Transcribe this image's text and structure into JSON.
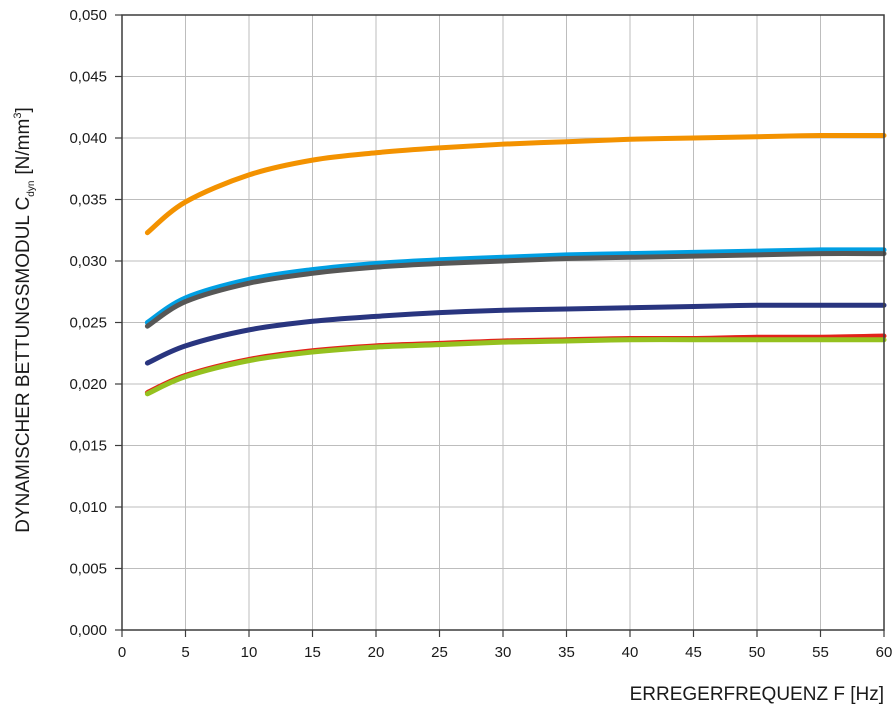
{
  "chart_data": {
    "type": "line",
    "xlabel": "ERREGERFREQUENZ F [Hz]",
    "ylabel": {
      "main": "DYNAMISCHER BETTUNGSMODUL C",
      "subscript": "dyn",
      "unit_prefix": "[N/mm",
      "unit_superscript": "3",
      "unit_suffix": "]"
    },
    "xlim": [
      0,
      60
    ],
    "ylim": [
      0,
      0.05
    ],
    "x_ticks": [
      "0",
      "5",
      "10",
      "15",
      "20",
      "25",
      "30",
      "35",
      "40",
      "45",
      "50",
      "55",
      "60"
    ],
    "y_ticks": [
      "0,000",
      "0,005",
      "0,010",
      "0,015",
      "0,020",
      "0,025",
      "0,030",
      "0,035",
      "0,040",
      "0,045",
      "0,050"
    ],
    "grid": true,
    "x": [
      2,
      5,
      10,
      15,
      20,
      25,
      30,
      35,
      40,
      45,
      50,
      55,
      60
    ],
    "series": [
      {
        "color": "#f39200",
        "values": [
          0.0323,
          0.0348,
          0.037,
          0.0382,
          0.0388,
          0.0392,
          0.0395,
          0.0397,
          0.0399,
          0.04,
          0.0401,
          0.0402,
          0.0402
        ]
      },
      {
        "color": "#009fe3",
        "values": [
          0.025,
          0.027,
          0.0285,
          0.0293,
          0.0298,
          0.0301,
          0.0303,
          0.0305,
          0.0306,
          0.0307,
          0.0308,
          0.0309,
          0.0309
        ]
      },
      {
        "color": "#575756",
        "values": [
          0.0247,
          0.0267,
          0.0282,
          0.029,
          0.0295,
          0.0298,
          0.03,
          0.0302,
          0.0303,
          0.0304,
          0.0305,
          0.0306,
          0.0306
        ]
      },
      {
        "color": "#29357f",
        "values": [
          0.0217,
          0.0231,
          0.0244,
          0.0251,
          0.0255,
          0.0258,
          0.026,
          0.0261,
          0.0262,
          0.0263,
          0.0264,
          0.0264,
          0.0264
        ]
      },
      {
        "color": "#e2231a",
        "values": [
          0.0193,
          0.0207,
          0.022,
          0.0227,
          0.0231,
          0.0233,
          0.0235,
          0.0236,
          0.0237,
          0.0237,
          0.0238,
          0.0238,
          0.0239
        ]
      },
      {
        "color": "#95c11f",
        "values": [
          0.0192,
          0.0206,
          0.0219,
          0.0226,
          0.023,
          0.0232,
          0.0234,
          0.0235,
          0.0236,
          0.0236,
          0.0236,
          0.0236,
          0.0236
        ]
      }
    ]
  }
}
